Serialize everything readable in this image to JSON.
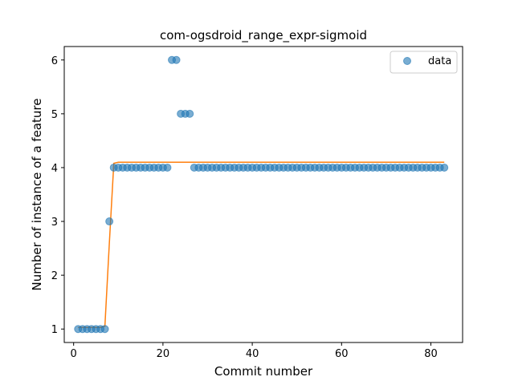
{
  "chart_data": {
    "type": "scatter",
    "title": "com-ogsdroid_range_expr-sigmoid",
    "xlabel": "Commit number",
    "ylabel": "Number of instance of a feature",
    "xlim": [
      -2.1,
      87.1
    ],
    "ylim": [
      0.75,
      6.25
    ],
    "xticks": [
      0,
      20,
      40,
      60,
      80
    ],
    "yticks": [
      1,
      2,
      3,
      4,
      5,
      6
    ],
    "legend": {
      "placement": "top-right",
      "entries": [
        "data"
      ]
    },
    "colors": {
      "data": "#1f77b4",
      "fit": "#ff7f0e"
    },
    "series": [
      {
        "name": "data",
        "kind": "scatter",
        "x": [
          1,
          2,
          3,
          4,
          5,
          6,
          7,
          8,
          9,
          10,
          11,
          12,
          13,
          14,
          15,
          16,
          17,
          18,
          19,
          20,
          21,
          22,
          23,
          24,
          25,
          26,
          27,
          28,
          29,
          30,
          31,
          32,
          33,
          34,
          35,
          36,
          37,
          38,
          39,
          40,
          41,
          42,
          43,
          44,
          45,
          46,
          47,
          48,
          49,
          50,
          51,
          52,
          53,
          54,
          55,
          56,
          57,
          58,
          59,
          60,
          61,
          62,
          63,
          64,
          65,
          66,
          67,
          68,
          69,
          70,
          71,
          72,
          73,
          74,
          75,
          76,
          77,
          78,
          79,
          80,
          81,
          82,
          83
        ],
        "y": [
          1,
          1,
          1,
          1,
          1,
          1,
          1,
          3,
          4,
          4,
          4,
          4,
          4,
          4,
          4,
          4,
          4,
          4,
          4,
          4,
          4,
          6,
          6,
          5,
          5,
          5,
          4,
          4,
          4,
          4,
          4,
          4,
          4,
          4,
          4,
          4,
          4,
          4,
          4,
          4,
          4,
          4,
          4,
          4,
          4,
          4,
          4,
          4,
          4,
          4,
          4,
          4,
          4,
          4,
          4,
          4,
          4,
          4,
          4,
          4,
          4,
          4,
          4,
          4,
          4,
          4,
          4,
          4,
          4,
          4,
          4,
          4,
          4,
          4,
          4,
          4,
          4,
          4,
          4,
          4,
          4,
          4,
          4
        ]
      },
      {
        "kind": "line",
        "x": [
          1,
          2,
          3,
          4,
          5,
          6,
          7,
          8,
          9,
          10,
          20,
          30,
          40,
          50,
          60,
          70,
          83
        ],
        "y": [
          1.03,
          1.03,
          1.03,
          1.03,
          1.03,
          1.03,
          1.05,
          2.6,
          4.08,
          4.1,
          4.1,
          4.1,
          4.1,
          4.1,
          4.1,
          4.1,
          4.1
        ]
      }
    ]
  }
}
